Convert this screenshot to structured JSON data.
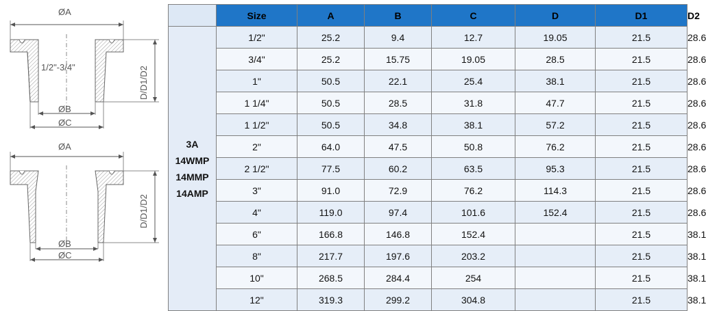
{
  "drawing": {
    "top": {
      "dim_a": "ØA",
      "bore_note": "1/2\"-3/4\"",
      "dim_d": "D/D1/D2",
      "dim_b": "ØB",
      "dim_c": "ØC"
    },
    "bottom": {
      "dim_a": "ØA",
      "dim_d": "D/D1/D2",
      "dim_b": "ØB",
      "dim_c": "ØC"
    }
  },
  "table": {
    "headers": [
      "Size",
      "A",
      "B",
      "C",
      "D",
      "D1",
      "D2"
    ],
    "standards": [
      "3A",
      "14WMP",
      "14MMP",
      "14AMP"
    ],
    "rows": [
      [
        "1/2\"",
        "25.2",
        "9.4",
        "12.7",
        "19.05",
        "21.5",
        "28.6"
      ],
      [
        "3/4\"",
        "25.2",
        "15.75",
        "19.05",
        "28.5",
        "21.5",
        "28.6"
      ],
      [
        "1\"",
        "50.5",
        "22.1",
        "25.4",
        "38.1",
        "21.5",
        "28.6"
      ],
      [
        "1 1/4\"",
        "50.5",
        "28.5",
        "31.8",
        "47.7",
        "21.5",
        "28.6"
      ],
      [
        "1 1/2\"",
        "50.5",
        "34.8",
        "38.1",
        "57.2",
        "21.5",
        "28.6"
      ],
      [
        "2\"",
        "64.0",
        "47.5",
        "50.8",
        "76.2",
        "21.5",
        "28.6"
      ],
      [
        "2 1/2\"",
        "77.5",
        "60.2",
        "63.5",
        "95.3",
        "21.5",
        "28.6"
      ],
      [
        "3\"",
        "91.0",
        "72.9",
        "76.2",
        "114.3",
        "21.5",
        "28.6"
      ],
      [
        "4\"",
        "119.0",
        "97.4",
        "101.6",
        "152.4",
        "21.5",
        "28.6"
      ],
      [
        "6\"",
        "166.8",
        "146.8",
        "152.4",
        "",
        "21.5",
        "38.1"
      ],
      [
        "8\"",
        "217.7",
        "197.6",
        "203.2",
        "",
        "21.5",
        "38.1"
      ],
      [
        "10\"",
        "268.5",
        "284.4",
        "254",
        "",
        "21.5",
        "38.1"
      ],
      [
        "12\"",
        "319.3",
        "299.2",
        "304.8",
        "",
        "21.5",
        "38.1"
      ]
    ]
  }
}
